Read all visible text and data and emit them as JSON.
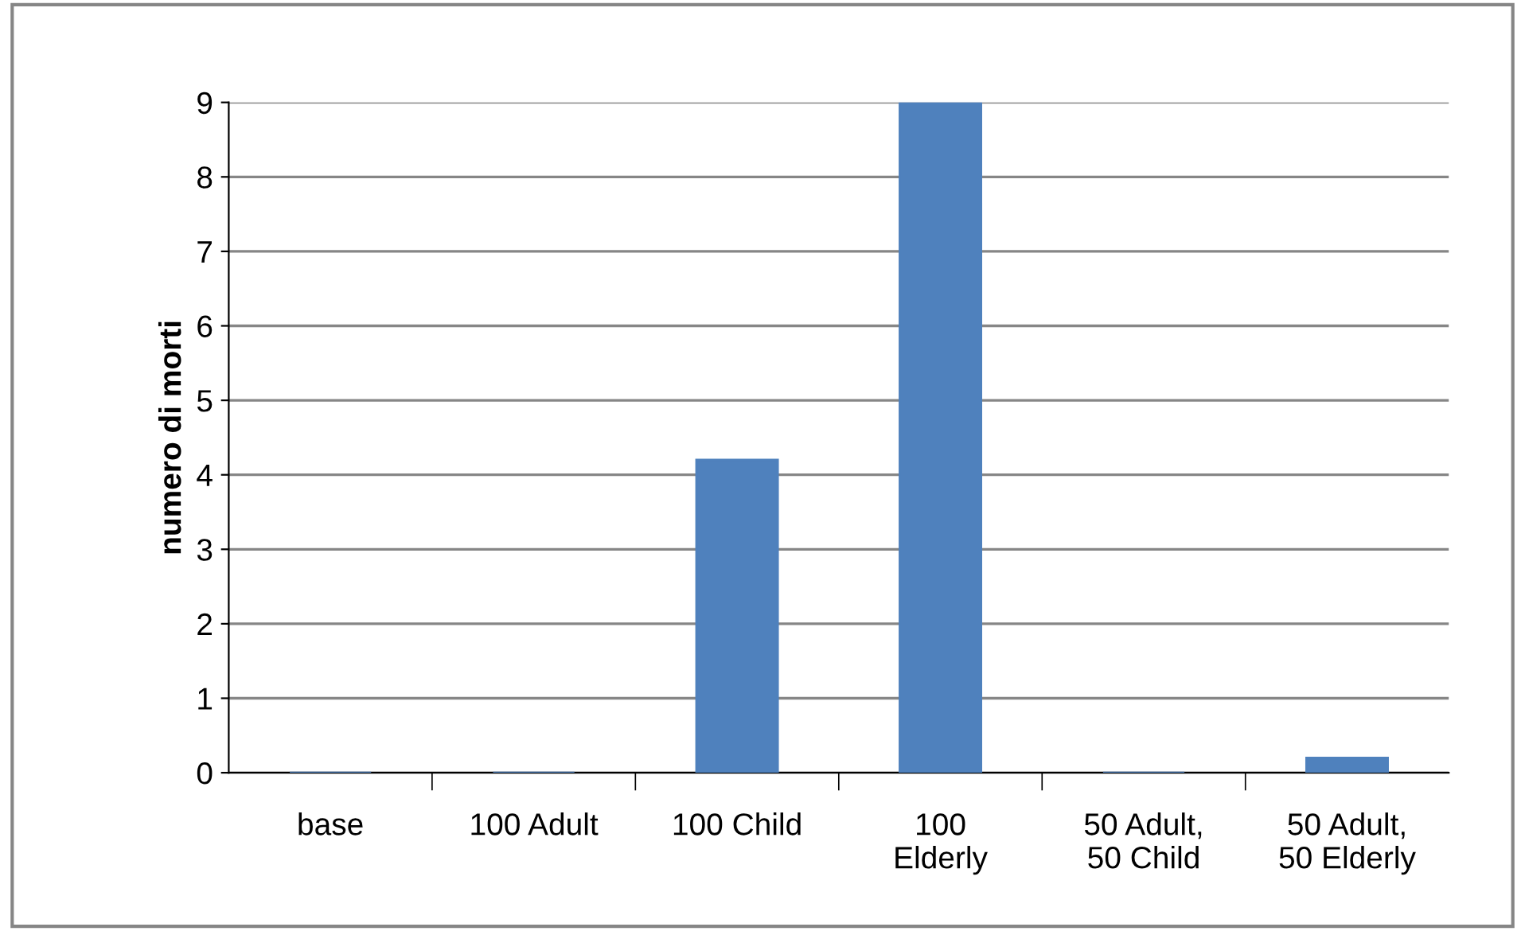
{
  "chart_data": {
    "type": "bar",
    "ylabel": "numero di morti",
    "categories": [
      "base",
      "100 Adult",
      "100 Child",
      "100\nElderly",
      "50 Adult,\n50 Child",
      "50 Adult,\n50 Elderly"
    ],
    "values": [
      0,
      0,
      4.2,
      9,
      0,
      0.2
    ],
    "color": "#4f81bd",
    "ylim": [
      0,
      9
    ],
    "yticks": [
      0,
      1,
      2,
      3,
      4,
      5,
      6,
      7,
      8,
      9
    ],
    "grid": "y",
    "legend": false
  }
}
